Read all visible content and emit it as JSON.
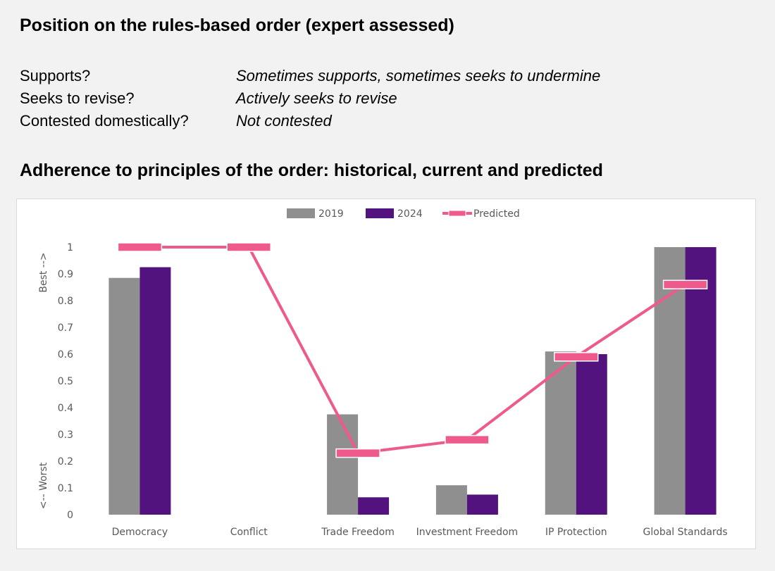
{
  "heading": "Position on the rules-based order (expert assessed)",
  "qa": [
    {
      "q": "Supports?",
      "a": "Sometimes supports, sometimes seeks to undermine"
    },
    {
      "q": "Seeks to revise?",
      "a": "Actively seeks to revise"
    },
    {
      "q": "Contested domestically?",
      "a": "Not contested"
    }
  ],
  "chart_heading": "Adherence to principles of the order: historical, current and predicted",
  "chart_data": {
    "type": "bar",
    "categories": [
      "Democracy",
      "Conflict",
      "Trade Freedom",
      "Investment Freedom",
      "IP Protection",
      "Global Standards"
    ],
    "series": [
      {
        "name": "2019",
        "values": [
          0.885,
          null,
          0.375,
          0.11,
          0.61,
          1.0
        ],
        "color": "#8f8f8f"
      },
      {
        "name": "2024",
        "values": [
          0.925,
          null,
          0.065,
          0.075,
          0.6,
          1.0
        ],
        "color": "#52137e"
      }
    ],
    "predicted": {
      "name": "Predicted",
      "type": "line",
      "values": [
        1.0,
        1.0,
        0.23,
        0.28,
        0.59,
        0.86
      ],
      "color": "#ee5a8c"
    },
    "ylim": [
      0,
      1
    ],
    "yticks": [
      "0",
      "0.1",
      "0.2",
      "0.3",
      "0.4",
      "0.5",
      "0.6",
      "0.7",
      "0.8",
      "0.9",
      "1"
    ],
    "ylabel_top": "Best -->",
    "ylabel_bottom": "<-- Worst",
    "legend_position": "top-center",
    "grid": false
  }
}
